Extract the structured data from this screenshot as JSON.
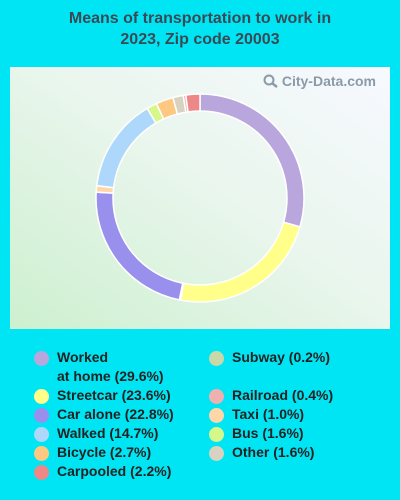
{
  "title": {
    "line1": "Means of transportation to work in",
    "line2": "2023, Zip code 20003"
  },
  "watermark": {
    "text": "City-Data.com",
    "icon": "magnifier-icon"
  },
  "chart_data": {
    "type": "pie",
    "donut": true,
    "start_angle_deg": 0,
    "direction": "clockwise",
    "slices": [
      {
        "name": "Worked at home",
        "value": 29.6,
        "color": "#b9a6dc"
      },
      {
        "name": "Streetcar",
        "value": 23.6,
        "color": "#ffff8a"
      },
      {
        "name": "Subway",
        "value": 0.2,
        "color": "#c8d8a8"
      },
      {
        "name": "Car alone",
        "value": 22.8,
        "color": "#9990ee"
      },
      {
        "name": "Taxi",
        "value": 1.0,
        "color": "#ffd6a8"
      },
      {
        "name": "Walked",
        "value": 14.7,
        "color": "#aed8fb"
      },
      {
        "name": "Bus",
        "value": 1.6,
        "color": "#d6f88a"
      },
      {
        "name": "Bicycle",
        "value": 2.7,
        "color": "#ffc880"
      },
      {
        "name": "Other",
        "value": 1.6,
        "color": "#d8d2c0"
      },
      {
        "name": "Railroad",
        "value": 0.4,
        "color": "#f0b0b0"
      },
      {
        "name": "Carpooled",
        "value": 2.2,
        "color": "#ee8888"
      }
    ]
  },
  "legend": {
    "left": [
      {
        "label": "Worked\nat home (29.6%)",
        "color": "#b9a6dc"
      },
      {
        "label": "Streetcar (23.6%)",
        "color": "#ffff8a"
      },
      {
        "label": "Car alone (22.8%)",
        "color": "#9990ee"
      },
      {
        "label": "Walked (14.7%)",
        "color": "#aed8fb"
      },
      {
        "label": "Bicycle (2.7%)",
        "color": "#ffc880"
      },
      {
        "label": "Carpooled (2.2%)",
        "color": "#ee8888"
      }
    ],
    "right": [
      {
        "label": "Subway (0.2%)",
        "color": "#c8d8a8"
      },
      {
        "label": "Railroad (0.4%)",
        "color": "#f0b0b0"
      },
      {
        "label": "Taxi (1.0%)",
        "color": "#ffd6a8"
      },
      {
        "label": "Bus (1.6%)",
        "color": "#d6f88a"
      },
      {
        "label": "Other (1.6%)",
        "color": "#d8d2c0"
      }
    ]
  }
}
